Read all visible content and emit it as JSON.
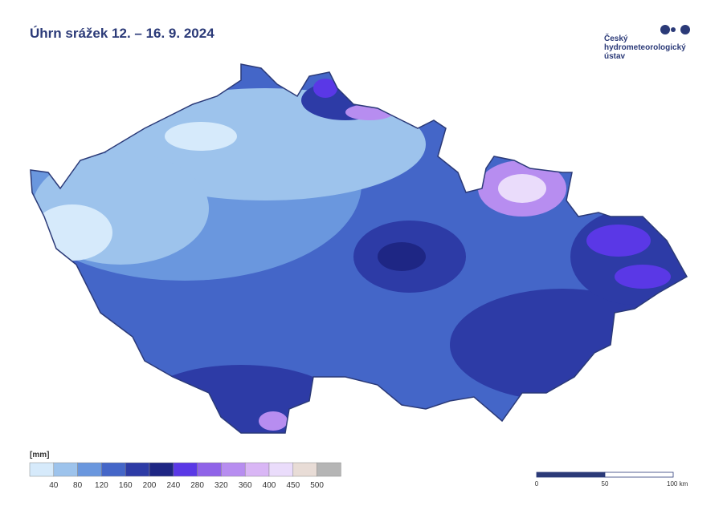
{
  "header": {
    "title": "Úhrn srážek 12. – 16. 9. 2024"
  },
  "logo": {
    "lines": [
      "Český",
      "hydrometeorologický",
      "ústav"
    ]
  },
  "legend": {
    "unit": "[mm]",
    "colors": [
      "#d6eafb",
      "#9dc3ec",
      "#6a97de",
      "#4466c8",
      "#2d3ba6",
      "#1e2684",
      "#5a38e6",
      "#8f63e8",
      "#b78df0",
      "#d9b6f5",
      "#eadcfb",
      "#e8dcd6",
      "#b5b5b5"
    ],
    "labels": [
      40,
      80,
      120,
      160,
      200,
      240,
      280,
      320,
      360,
      400,
      450,
      500
    ]
  },
  "scale_bar": {
    "labels": [
      "0",
      "50",
      "100 km"
    ]
  }
}
